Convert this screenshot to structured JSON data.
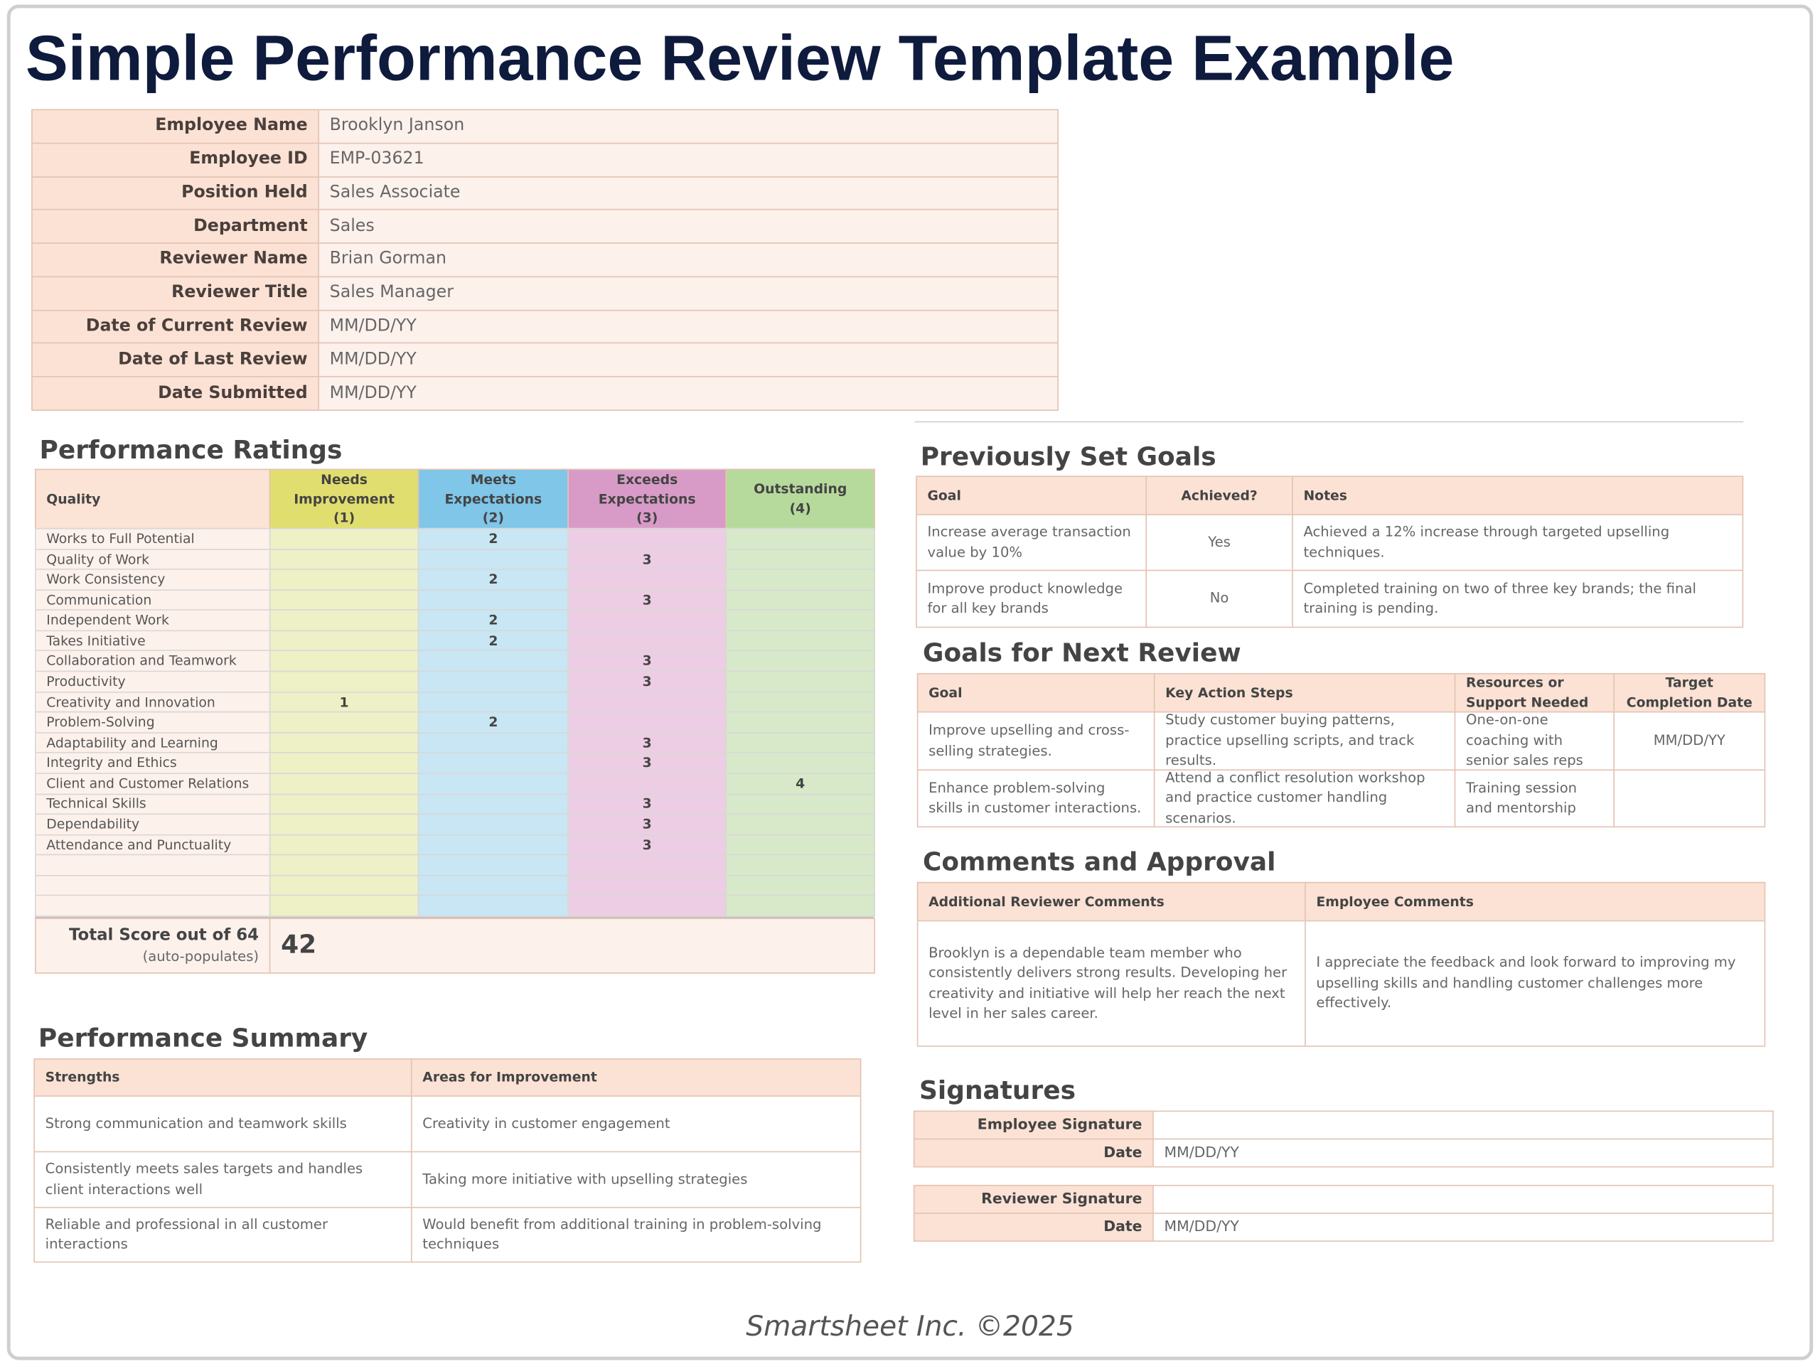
{
  "title": "Simple Performance Review Template Example",
  "employee_info": {
    "rows": [
      [
        "Employee Name",
        "Brooklyn Janson"
      ],
      [
        "Employee ID",
        "EMP-03621"
      ],
      [
        "Position Held",
        "Sales Associate"
      ],
      [
        "Department",
        "Sales"
      ],
      [
        "Reviewer Name",
        "Brian Gorman"
      ],
      [
        "Reviewer Title",
        "Sales Manager"
      ],
      [
        "Date of Current Review",
        "MM/DD/YY"
      ],
      [
        "Date of Last Review",
        "MM/DD/YY"
      ],
      [
        "Date Submitted",
        "MM/DD/YY"
      ]
    ]
  },
  "performance_ratings": {
    "heading": "Performance Ratings",
    "quality_header": "Quality",
    "levels": [
      {
        "label": "Needs Improvement",
        "score": "(1)"
      },
      {
        "label": "Meets Expectations",
        "score": "(2)"
      },
      {
        "label": "Exceeds Expectations",
        "score": "(3)"
      },
      {
        "label": "Outstanding",
        "score": "(4)"
      }
    ],
    "rows": [
      {
        "quality": "Works to Full Potential",
        "rating": 2
      },
      {
        "quality": "Quality of Work",
        "rating": 3
      },
      {
        "quality": "Work Consistency",
        "rating": 2
      },
      {
        "quality": "Communication",
        "rating": 3
      },
      {
        "quality": "Independent Work",
        "rating": 2
      },
      {
        "quality": "Takes Initiative",
        "rating": 2
      },
      {
        "quality": "Collaboration and Teamwork",
        "rating": 3
      },
      {
        "quality": "Productivity",
        "rating": 3
      },
      {
        "quality": "Creativity and Innovation",
        "rating": 1
      },
      {
        "quality": "Problem-Solving",
        "rating": 2
      },
      {
        "quality": "Adaptability and Learning",
        "rating": 3
      },
      {
        "quality": "Integrity and Ethics",
        "rating": 3
      },
      {
        "quality": "Client and Customer Relations",
        "rating": 4
      },
      {
        "quality": "Technical Skills",
        "rating": 3
      },
      {
        "quality": "Dependability",
        "rating": 3
      },
      {
        "quality": "Attendance and Punctuality",
        "rating": 3
      }
    ],
    "total_label": "Total Score out of 64",
    "total_note": "(auto-populates)",
    "total": 42
  },
  "performance_summary": {
    "heading": "Performance Summary",
    "headers": [
      "Strengths",
      "Areas for Improvement"
    ],
    "rows": [
      [
        "Strong communication and teamwork skills",
        "Creativity in customer engagement"
      ],
      [
        "Consistently meets sales targets and handles client interactions well",
        "Taking more initiative with upselling strategies"
      ],
      [
        "Reliable and professional in all customer interactions",
        "Would benefit from additional training in problem-solving techniques"
      ]
    ]
  },
  "previous_goals": {
    "heading": "Previously Set Goals",
    "headers": [
      "Goal",
      "Achieved?",
      "Notes"
    ],
    "rows": [
      [
        "Increase average transaction value by 10%",
        "Yes",
        "Achieved a 12% increase through targeted upselling techniques."
      ],
      [
        "Improve product knowledge for all key brands",
        "No",
        "Completed training on two of three key brands; the final training is pending."
      ]
    ]
  },
  "next_goals": {
    "heading": "Goals for Next Review",
    "headers": [
      "Goal",
      "Key Action Steps",
      "Resources or Support Needed",
      "Target Completion Date"
    ],
    "rows": [
      [
        "Improve upselling and cross-selling strategies.",
        "Study customer buying patterns, practice upselling scripts, and track results.",
        "One-on-one coaching with senior sales reps",
        "MM/DD/YY"
      ],
      [
        "Enhance problem-solving skills in customer interactions.",
        "Attend a conflict resolution workshop and practice customer handling scenarios.",
        "Training session and mentorship",
        null
      ]
    ]
  },
  "comments": {
    "heading": "Comments and Approval",
    "headers": [
      "Additional Reviewer Comments",
      "Employee Comments"
    ],
    "rows": [
      [
        "Brooklyn is a dependable team member who consistently delivers strong results. Developing her creativity and initiative will help her reach the next level in her sales career.",
        "I appreciate the feedback and look forward to improving my upselling skills and handling customer challenges more effectively."
      ]
    ]
  },
  "signatures": {
    "heading": "Signatures",
    "blocks": [
      [
        [
          "Employee Signature",
          null
        ],
        [
          "Date",
          "MM/DD/YY"
        ]
      ],
      [
        [
          "Reviewer Signature",
          null
        ],
        [
          "Date",
          "MM/DD/YY"
        ]
      ]
    ]
  },
  "footer": "Smartsheet Inc. ©2025"
}
